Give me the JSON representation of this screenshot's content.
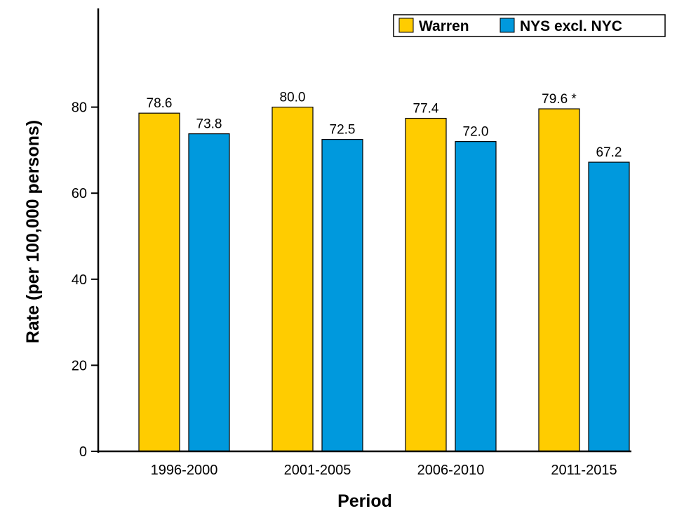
{
  "chart_data": {
    "type": "bar",
    "categories": [
      "1996-2000",
      "2001-2005",
      "2006-2010",
      "2011-2015"
    ],
    "series": [
      {
        "name": "Warren",
        "values": [
          78.6,
          80.0,
          77.4,
          79.6
        ],
        "labels": [
          "78.6",
          "80.0",
          "77.4",
          "79.6 *"
        ],
        "color": "#FFCC00"
      },
      {
        "name": "NYS excl. NYC",
        "values": [
          73.8,
          72.5,
          72.0,
          67.2
        ],
        "labels": [
          "73.8",
          "72.5",
          "72.0",
          "67.2"
        ],
        "color": "#0099DD"
      }
    ],
    "xlabel": "Period",
    "ylabel": "Rate (per 100,000 persons)",
    "ylim": [
      0,
      100
    ],
    "yticks": [
      0,
      20,
      40,
      60,
      80
    ],
    "ytick_labels": [
      "0",
      "20",
      "40",
      "60",
      "80"
    ],
    "grid": false,
    "legend_position": "top-right"
  }
}
